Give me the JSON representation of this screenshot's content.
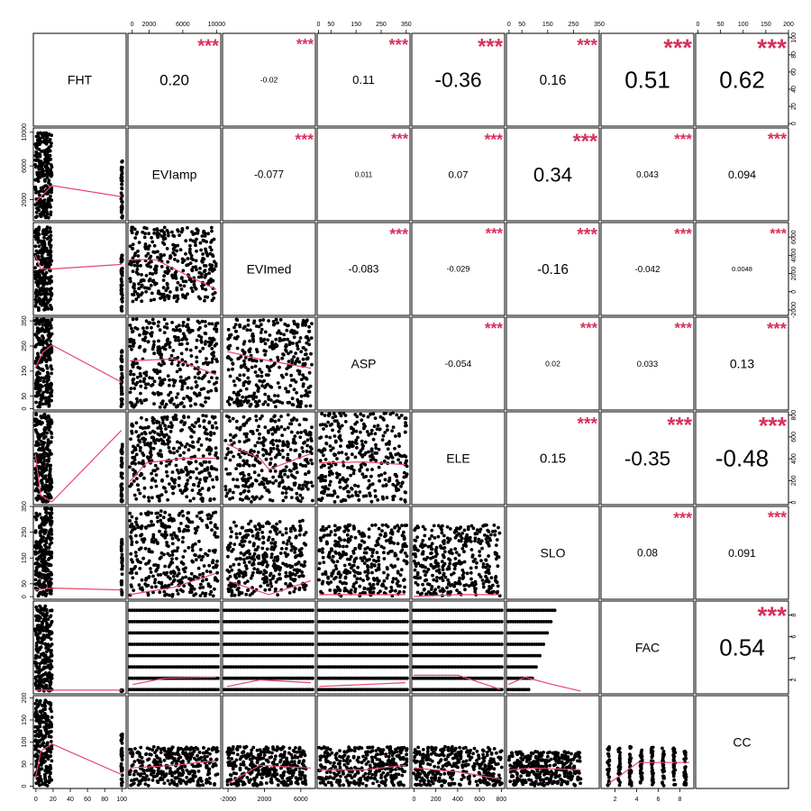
{
  "chart_data": {
    "type": "scatter-matrix",
    "variables": [
      "FHT",
      "EVIamp",
      "EVImed",
      "ASP",
      "ELE",
      "SLO",
      "FAC",
      "CC"
    ],
    "colors": {
      "stars": "#d8315b",
      "smooth": "#e8476a",
      "points": "#000000",
      "frame": "#000000"
    },
    "correlations": [
      {
        "row": 0,
        "col": 1,
        "value": "0.20",
        "stars": "***"
      },
      {
        "row": 0,
        "col": 2,
        "value": "-0.02",
        "stars": "***"
      },
      {
        "row": 0,
        "col": 3,
        "value": "0.11",
        "stars": "***"
      },
      {
        "row": 0,
        "col": 4,
        "value": "-0.36",
        "stars": "***"
      },
      {
        "row": 0,
        "col": 5,
        "value": "0.16",
        "stars": "***"
      },
      {
        "row": 0,
        "col": 6,
        "value": "0.51",
        "stars": "***"
      },
      {
        "row": 0,
        "col": 7,
        "value": "0.62",
        "stars": "***"
      },
      {
        "row": 1,
        "col": 2,
        "value": "-0.077",
        "stars": "***"
      },
      {
        "row": 1,
        "col": 3,
        "value": "0.011",
        "stars": "***"
      },
      {
        "row": 1,
        "col": 4,
        "value": "0.07",
        "stars": "***"
      },
      {
        "row": 1,
        "col": 5,
        "value": "0.34",
        "stars": "***"
      },
      {
        "row": 1,
        "col": 6,
        "value": "0.043",
        "stars": "***"
      },
      {
        "row": 1,
        "col": 7,
        "value": "0.094",
        "stars": "***"
      },
      {
        "row": 2,
        "col": 3,
        "value": "-0.083",
        "stars": "***"
      },
      {
        "row": 2,
        "col": 4,
        "value": "-0.029",
        "stars": "***"
      },
      {
        "row": 2,
        "col": 5,
        "value": "-0.16",
        "stars": "***"
      },
      {
        "row": 2,
        "col": 6,
        "value": "-0.042",
        "stars": "***"
      },
      {
        "row": 2,
        "col": 7,
        "value": "0.0048",
        "stars": "***"
      },
      {
        "row": 3,
        "col": 4,
        "value": "-0.054",
        "stars": "***"
      },
      {
        "row": 3,
        "col": 5,
        "value": "0.02",
        "stars": "***"
      },
      {
        "row": 3,
        "col": 6,
        "value": "0.033",
        "stars": "***"
      },
      {
        "row": 3,
        "col": 7,
        "value": "0.13",
        "stars": "***"
      },
      {
        "row": 4,
        "col": 5,
        "value": "0.15",
        "stars": "***"
      },
      {
        "row": 4,
        "col": 6,
        "value": "-0.35",
        "stars": "***"
      },
      {
        "row": 4,
        "col": 7,
        "value": "-0.48",
        "stars": "***"
      },
      {
        "row": 5,
        "col": 6,
        "value": "0.08",
        "stars": "***"
      },
      {
        "row": 5,
        "col": 7,
        "value": "0.091",
        "stars": "***"
      },
      {
        "row": 6,
        "col": 7,
        "value": "0.54",
        "stars": "***"
      }
    ],
    "axes": {
      "top": [
        {
          "col": 1,
          "ticks": [
            "0",
            "2000",
            "6000",
            "10000"
          ],
          "values": [
            0,
            2000,
            6000,
            10000
          ],
          "range": [
            -500,
            10500
          ]
        },
        {
          "col": 3,
          "ticks": [
            "0",
            "50",
            "150",
            "250",
            "350"
          ],
          "values": [
            0,
            50,
            150,
            250,
            350
          ],
          "range": [
            -5,
            365
          ]
        },
        {
          "col": 5,
          "ticks": [
            "0",
            "50",
            "150",
            "250",
            "350"
          ],
          "values": [
            0,
            50,
            150,
            250,
            350
          ],
          "range": [
            -10,
            350
          ]
        },
        {
          "col": 7,
          "ticks": [
            "0",
            "50",
            "100",
            "150",
            "200"
          ],
          "values": [
            0,
            50,
            100,
            150,
            200
          ],
          "range": [
            -5,
            200
          ]
        }
      ],
      "bottom": [
        {
          "col": 0,
          "ticks": [
            "0",
            "20",
            "40",
            "60",
            "80",
            "100"
          ],
          "values": [
            0,
            20,
            40,
            60,
            80,
            100
          ],
          "range": [
            -3,
            105
          ]
        },
        {
          "col": 2,
          "ticks": [
            "-2000",
            "2000",
            "6000"
          ],
          "values": [
            -2000,
            2000,
            6000
          ],
          "range": [
            -2600,
            7600
          ]
        },
        {
          "col": 4,
          "ticks": [
            "0",
            "200",
            "400",
            "600",
            "800"
          ],
          "values": [
            0,
            200,
            400,
            600,
            800
          ],
          "range": [
            -20,
            830
          ]
        },
        {
          "col": 6,
          "ticks": [
            "2",
            "4",
            "6",
            "8"
          ],
          "values": [
            2,
            4,
            6,
            8
          ],
          "range": [
            0.7,
            9.3
          ]
        }
      ],
      "left": [
        {
          "row": 1,
          "ticks": [
            "2000",
            "6000",
            "10000"
          ],
          "values": [
            2000,
            6000,
            10000
          ],
          "range": [
            -500,
            10500
          ]
        },
        {
          "row": 3,
          "ticks": [
            "0",
            "50",
            "150",
            "250",
            "350"
          ],
          "values": [
            0,
            50,
            150,
            250,
            350
          ],
          "range": [
            -5,
            365
          ]
        },
        {
          "row": 5,
          "ticks": [
            "0",
            "50",
            "150",
            "250",
            "350"
          ],
          "values": [
            0,
            50,
            150,
            250,
            350
          ],
          "range": [
            -10,
            350
          ]
        },
        {
          "row": 7,
          "ticks": [
            "0",
            "50",
            "100",
            "150",
            "200"
          ],
          "values": [
            0,
            50,
            100,
            150,
            200
          ],
          "range": [
            -5,
            205
          ]
        }
      ],
      "right": [
        {
          "row": 0,
          "ticks": [
            "0",
            "20",
            "40",
            "60",
            "80",
            "100"
          ],
          "values": [
            0,
            20,
            40,
            60,
            80,
            100
          ],
          "range": [
            -3,
            105
          ]
        },
        {
          "row": 2,
          "ticks": [
            "-2000",
            "0",
            "2000",
            "4000",
            "6000"
          ],
          "values": [
            -2000,
            0,
            2000,
            4000,
            6000
          ],
          "range": [
            -2600,
            7600
          ]
        },
        {
          "row": 4,
          "ticks": [
            "0",
            "200",
            "400",
            "600",
            "800"
          ],
          "values": [
            0,
            200,
            400,
            600,
            800
          ],
          "range": [
            -20,
            830
          ]
        },
        {
          "row": 6,
          "ticks": [
            "2",
            "4",
            "6",
            "8"
          ],
          "values": [
            2,
            4,
            6,
            8
          ],
          "range": [
            0.7,
            9.3
          ]
        }
      ]
    }
  }
}
